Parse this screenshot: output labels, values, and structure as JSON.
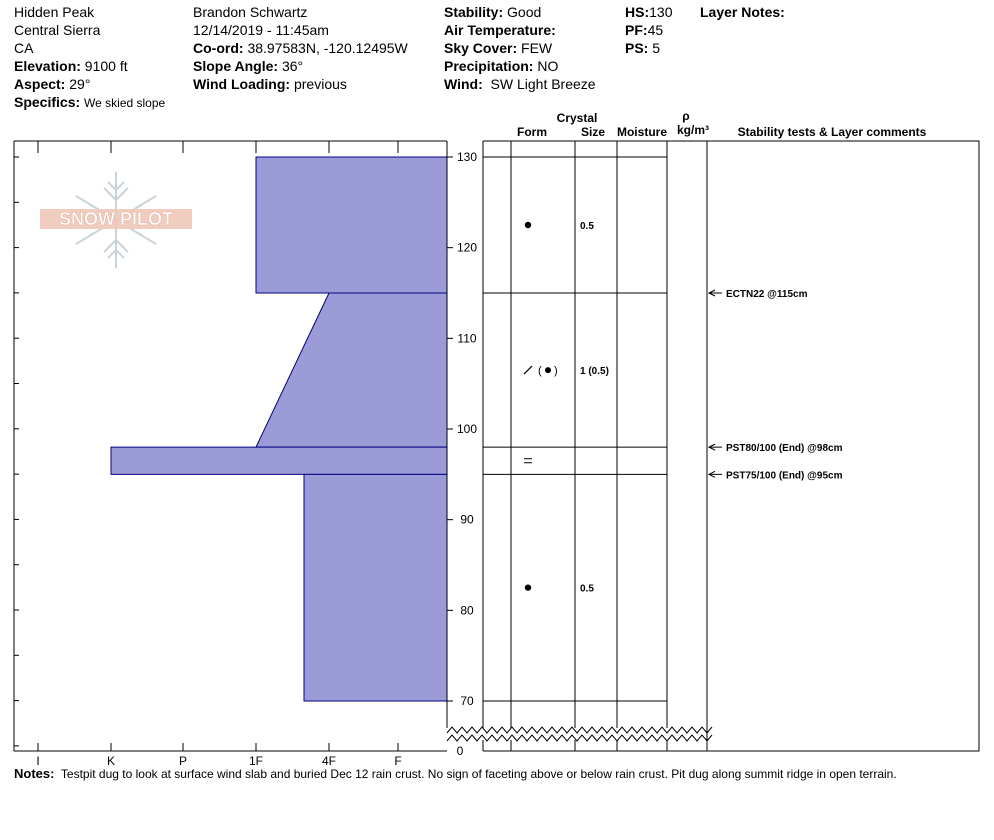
{
  "header": {
    "location": "Hidden Peak",
    "range": "Central Sierra",
    "state": "CA",
    "elevation_label": "Elevation:",
    "elevation": "9100 ft",
    "aspect_label": "Aspect:",
    "aspect": "29°",
    "specifics_label": "Specifics:",
    "specifics": "We skied slope",
    "observer": "Brandon Schwartz",
    "datetime": "12/14/2019 - 11:45am",
    "coord_label": "Co-ord:",
    "coord": "38.97583N, -120.12495W",
    "slope_label": "Slope Angle:",
    "slope": "36°",
    "wind_loading_label": "Wind Loading:",
    "wind_loading": "previous",
    "stability_label": "Stability:",
    "stability": "Good",
    "air_temp_label": "Air Temperature:",
    "air_temp": "",
    "sky_label": "Sky Cover:",
    "sky": "FEW",
    "precip_label": "Precipitation:",
    "precip": "NO",
    "wind_label": "Wind:",
    "wind": "SW Light Breeze",
    "hs_label": "HS:",
    "hs": "130",
    "pf_label": "PF:",
    "pf": "45",
    "ps_label": "PS:",
    "ps": "5",
    "layer_notes_label": "Layer Notes:"
  },
  "columns": {
    "crystal": "Crystal",
    "form": "Form",
    "size": "Size",
    "moisture": "Moisture",
    "rho": "ρ",
    "density_unit": "kg/m³",
    "comments": "Stability tests & Layer comments"
  },
  "logo_text": "SNOW PILOT",
  "notes_label": "Notes:",
  "notes": "Testpit dug to look at surface wind slab and buried Dec 12 rain crust. No sign of faceting above or below rain crust. Pit dug along summit ridge in open terrain.",
  "colors": {
    "hardness_fill": "#9b9bd8",
    "hardness_stroke": "#000080",
    "logo": "#f0c8b8"
  },
  "chart_data": {
    "type": "snow-profile",
    "hardness_scale": [
      "I",
      "K",
      "P",
      "1F",
      "F",
      "4F"
    ],
    "hardness_ticks": [
      "I",
      "K",
      "P",
      "1F",
      "4F",
      "F"
    ],
    "depth_range": [
      70,
      130
    ],
    "depth_ticks": [
      130,
      120,
      110,
      100,
      90,
      80,
      70
    ],
    "depth_zero_label": "0",
    "layers": [
      {
        "top": 130,
        "bottom": 115,
        "hardness_top": "1F",
        "hardness_bottom": "1F",
        "form": "graupel",
        "size": "0.5"
      },
      {
        "top": 115,
        "bottom": 98,
        "hardness_top": "4F",
        "hardness_bottom": "1F",
        "form": "decomposing (graupel)",
        "size": "1 (0.5)"
      },
      {
        "top": 98,
        "bottom": 95,
        "hardness_top": "K",
        "hardness_bottom": "K",
        "form": "crust",
        "size": ""
      },
      {
        "top": 95,
        "bottom": 70,
        "hardness_top": "4F+",
        "hardness_bottom": "4F+",
        "form": "graupel",
        "size": "0.5"
      }
    ],
    "tests": [
      {
        "depth": 115,
        "label": "ECTN22 @115cm"
      },
      {
        "depth": 98,
        "label": "PST80/100 (End) @98cm"
      },
      {
        "depth": 95,
        "label": "PST75/100 (End) @95cm"
      }
    ]
  }
}
